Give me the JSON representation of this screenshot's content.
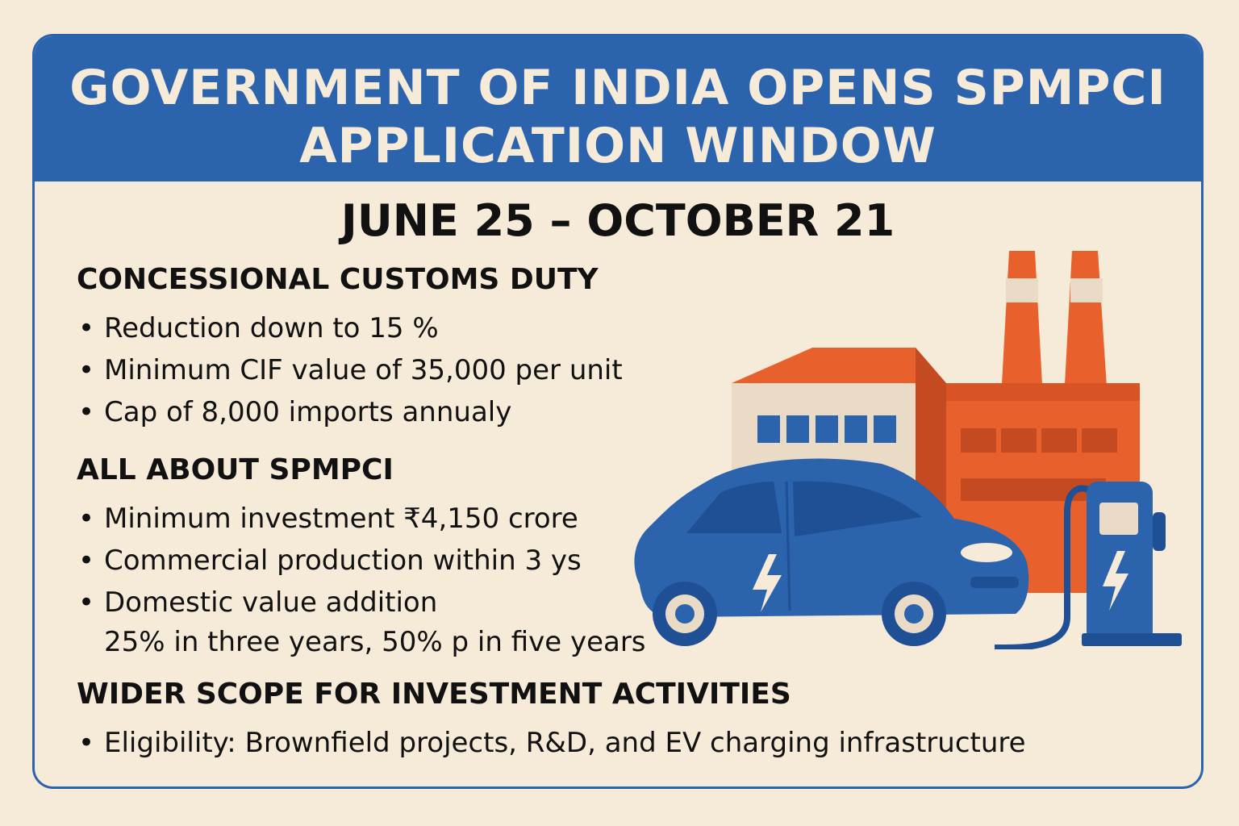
{
  "header": {
    "title_line1": "GOVERNMENT OF INDIA OPENS SPMPCI",
    "title_line2": "APPLICATION WINDOW"
  },
  "dates": "JUNE 25 – OCTOBER 21",
  "sections": [
    {
      "heading": "CONCESSIONAL CUSTOMS DUTY",
      "bullets": [
        "Reduction down to 15 %",
        "Minimum CIF value of 35,000 per unit",
        "Cap of 8,000 imports annualy"
      ]
    },
    {
      "heading": "ALL ABOUT SPMPCI",
      "bullets": [
        "Minimum investment ₹4,150 crore",
        "Commercial production within 3 ys",
        "Domestic value addition"
      ],
      "bullet3_line2": "25% in three years, 50% p in five years"
    },
    {
      "heading": "WIDER SCOPE FOR INVESTMENT ACTIVITIES",
      "bullets": [
        "Eligibility: Brownfield projects, R&D, and EV charging infrastructure"
      ]
    }
  ],
  "illustration": {
    "icons": [
      "factory-icon",
      "electric-car-icon",
      "ev-charging-station-icon",
      "lightning-bolt-icon"
    ],
    "colors": {
      "blue": "#2b63ad",
      "orange": "#e8612c",
      "cream": "#f6ead8",
      "dark_blue": "#1f4f94"
    }
  }
}
